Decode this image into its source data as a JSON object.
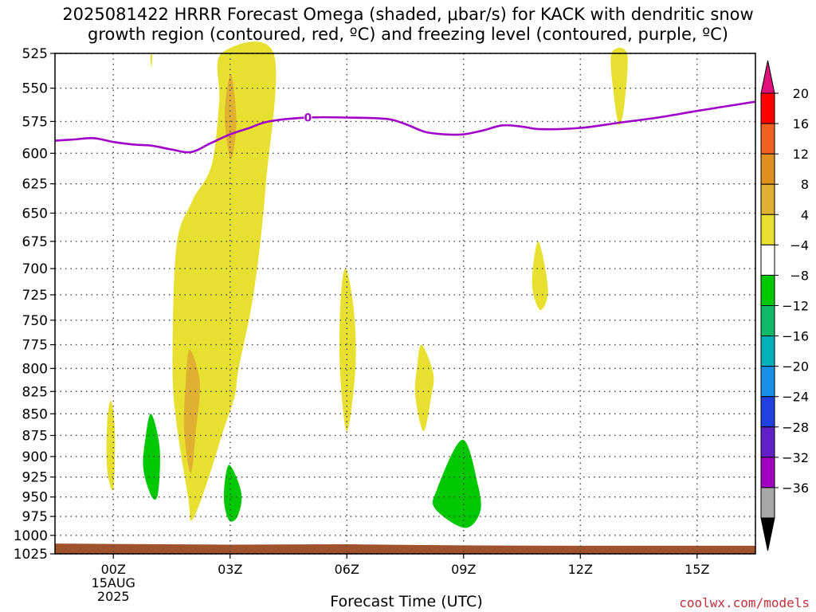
{
  "title": {
    "line1": "2025081422 HRRR Forecast Omega (shaded, μbar/s) for KACK with dendritic snow",
    "line2": "growth region (contoured, red, ºC) and freezing level (contoured, purple, ºC)"
  },
  "credit": "coolwx.com/models",
  "chart_data": {
    "type": "contour",
    "xlabel": "Forecast Time (UTC)",
    "ylabel": "",
    "y_axis": {
      "scale": "pressure (inverted)",
      "range": [
        1025,
        525
      ],
      "ticks": [
        "525",
        "550",
        "575",
        "600",
        "625",
        "650",
        "675",
        "700",
        "725",
        "750",
        "775",
        "800",
        "825",
        "850",
        "875",
        "900",
        "925",
        "950",
        "975",
        "1000",
        "1025"
      ]
    },
    "x_axis": {
      "range_hours": [
        -1.5,
        16.5
      ],
      "ticks": [
        {
          "h": 0,
          "label": "00Z",
          "sub1": "15AUG",
          "sub2": "2025"
        },
        {
          "h": 3,
          "label": "03Z"
        },
        {
          "h": 6,
          "label": "06Z"
        },
        {
          "h": 9,
          "label": "09Z"
        },
        {
          "h": 12,
          "label": "12Z"
        },
        {
          "h": 15,
          "label": "15Z"
        }
      ]
    },
    "grid": true,
    "colorbar": {
      "labels": [
        "20",
        "16",
        "12",
        "8",
        "4",
        "−4",
        "−8",
        "−12",
        "−16",
        "−20",
        "−24",
        "−28",
        "−32",
        "−36"
      ],
      "bands": [
        {
          "color": "#ff0000"
        },
        {
          "color": "#f06020"
        },
        {
          "color": "#e09020"
        },
        {
          "color": "#e0b030"
        },
        {
          "color": "#e8e030"
        },
        {
          "color": "#ffffff"
        },
        {
          "color": "#00c800"
        },
        {
          "color": "#10b868"
        },
        {
          "color": "#00b0b8"
        },
        {
          "color": "#1890e8"
        },
        {
          "color": "#2040e0"
        },
        {
          "color": "#6020c8"
        },
        {
          "color": "#a000c0"
        },
        {
          "color": "#a8a8a8"
        }
      ],
      "top_arrow_color": "#e0107a",
      "bottom_arrow_color": "#000000"
    },
    "freezing_level": {
      "color": "#a000c8",
      "label": "0",
      "label_at": {
        "h": 5.0,
        "p": 572
      },
      "points": [
        {
          "h": -1.5,
          "p": 590
        },
        {
          "h": -1.0,
          "p": 589
        },
        {
          "h": -0.5,
          "p": 588
        },
        {
          "h": 0.0,
          "p": 591
        },
        {
          "h": 0.5,
          "p": 593
        },
        {
          "h": 1.0,
          "p": 594
        },
        {
          "h": 1.5,
          "p": 597
        },
        {
          "h": 2.0,
          "p": 599
        },
        {
          "h": 2.5,
          "p": 592
        },
        {
          "h": 3.0,
          "p": 585
        },
        {
          "h": 3.5,
          "p": 580
        },
        {
          "h": 4.0,
          "p": 575
        },
        {
          "h": 5.0,
          "p": 572
        },
        {
          "h": 6.0,
          "p": 572
        },
        {
          "h": 7.0,
          "p": 573
        },
        {
          "h": 7.5,
          "p": 577
        },
        {
          "h": 8.0,
          "p": 583
        },
        {
          "h": 8.5,
          "p": 585
        },
        {
          "h": 9.0,
          "p": 585
        },
        {
          "h": 9.5,
          "p": 582
        },
        {
          "h": 10.0,
          "p": 578
        },
        {
          "h": 10.5,
          "p": 579
        },
        {
          "h": 11.0,
          "p": 581
        },
        {
          "h": 12.0,
          "p": 580
        },
        {
          "h": 13.0,
          "p": 576
        },
        {
          "h": 14.0,
          "p": 572
        },
        {
          "h": 15.0,
          "p": 567
        },
        {
          "h": 16.5,
          "p": 560
        }
      ]
    },
    "terrain": {
      "color": "#a0522d",
      "points": [
        {
          "h": -1.5,
          "p": 1011
        },
        {
          "h": 0.0,
          "p": 1011.5
        },
        {
          "h": 3.0,
          "p": 1012.5
        },
        {
          "h": 6.0,
          "p": 1012
        },
        {
          "h": 9.0,
          "p": 1013.5
        },
        {
          "h": 12.0,
          "p": 1014
        },
        {
          "h": 16.5,
          "p": 1014
        }
      ]
    },
    "omega_regions": [
      {
        "color": "#e8e030",
        "points": [
          {
            "h": 2.78,
            "p": 525
          },
          {
            "h": 4.12,
            "p": 525
          },
          {
            "h": 3.92,
            "p": 625
          },
          {
            "h": 3.62,
            "p": 720
          },
          {
            "h": 3.22,
            "p": 800
          },
          {
            "h": 3.12,
            "p": 830
          },
          {
            "h": 2.82,
            "p": 870
          },
          {
            "h": 2.42,
            "p": 930
          },
          {
            "h": 2.02,
            "p": 980
          },
          {
            "h": 1.92,
            "p": 950
          },
          {
            "h": 1.62,
            "p": 860
          },
          {
            "h": 1.52,
            "p": 795
          },
          {
            "h": 1.62,
            "p": 680
          },
          {
            "h": 2.02,
            "p": 640
          },
          {
            "h": 2.52,
            "p": 610
          },
          {
            "h": 2.72,
            "p": 560
          }
        ]
      },
      {
        "color": "#e0b030",
        "points": [
          {
            "h": 3.02,
            "p": 540
          },
          {
            "h": 3.16,
            "p": 575
          },
          {
            "h": 3.02,
            "p": 605
          },
          {
            "h": 2.86,
            "p": 570
          }
        ]
      },
      {
        "color": "#e0b030",
        "points": [
          {
            "h": 1.96,
            "p": 780
          },
          {
            "h": 2.22,
            "p": 815
          },
          {
            "h": 2.12,
            "p": 870
          },
          {
            "h": 1.99,
            "p": 920
          },
          {
            "h": 1.82,
            "p": 870
          },
          {
            "h": 1.86,
            "p": 815
          }
        ]
      },
      {
        "color": "#e8e030",
        "points": [
          {
            "h": -0.06,
            "p": 835
          },
          {
            "h": 0.04,
            "p": 870
          },
          {
            "h": 0.0,
            "p": 940
          },
          {
            "h": -0.16,
            "p": 915
          },
          {
            "h": -0.16,
            "p": 860
          }
        ]
      },
      {
        "color": "#e8e030",
        "points": [
          {
            "h": 0.97,
            "p": 525
          },
          {
            "h": 1.0,
            "p": 527
          },
          {
            "h": 0.98,
            "p": 535
          },
          {
            "h": 0.95,
            "p": 528
          }
        ]
      },
      {
        "color": "#e8e030",
        "points": [
          {
            "h": 5.97,
            "p": 700
          },
          {
            "h": 6.18,
            "p": 740
          },
          {
            "h": 6.22,
            "p": 800
          },
          {
            "h": 6.0,
            "p": 870
          },
          {
            "h": 5.82,
            "p": 800
          },
          {
            "h": 5.84,
            "p": 730
          }
        ]
      },
      {
        "color": "#e8e030",
        "points": [
          {
            "h": 7.92,
            "p": 775
          },
          {
            "h": 8.22,
            "p": 805
          },
          {
            "h": 8.17,
            "p": 830
          },
          {
            "h": 7.97,
            "p": 870
          },
          {
            "h": 7.76,
            "p": 830
          },
          {
            "h": 7.8,
            "p": 800
          }
        ]
      },
      {
        "color": "#e8e030",
        "points": [
          {
            "h": 10.92,
            "p": 675
          },
          {
            "h": 11.17,
            "p": 720
          },
          {
            "h": 10.97,
            "p": 740
          },
          {
            "h": 10.76,
            "p": 715
          }
        ]
      },
      {
        "color": "#e8e030",
        "points": [
          {
            "h": 12.8,
            "p": 525
          },
          {
            "h": 13.2,
            "p": 525
          },
          {
            "h": 13.14,
            "p": 560
          },
          {
            "h": 13.0,
            "p": 578
          },
          {
            "h": 12.86,
            "p": 555
          }
        ]
      },
      {
        "color": "#00c800",
        "points": [
          {
            "h": 0.97,
            "p": 850
          },
          {
            "h": 1.19,
            "p": 890
          },
          {
            "h": 1.15,
            "p": 945
          },
          {
            "h": 0.99,
            "p": 950
          },
          {
            "h": 0.77,
            "p": 915
          },
          {
            "h": 0.82,
            "p": 880
          }
        ]
      },
      {
        "color": "#00c800",
        "points": [
          {
            "h": 2.97,
            "p": 910
          },
          {
            "h": 3.29,
            "p": 945
          },
          {
            "h": 3.19,
            "p": 975
          },
          {
            "h": 2.97,
            "p": 980
          },
          {
            "h": 2.84,
            "p": 950
          }
        ]
      },
      {
        "color": "#00c800",
        "points": [
          {
            "h": 8.97,
            "p": 880
          },
          {
            "h": 9.37,
            "p": 935
          },
          {
            "h": 9.42,
            "p": 970
          },
          {
            "h": 9.02,
            "p": 990
          },
          {
            "h": 8.27,
            "p": 965
          },
          {
            "h": 8.32,
            "p": 940
          }
        ]
      }
    ]
  }
}
